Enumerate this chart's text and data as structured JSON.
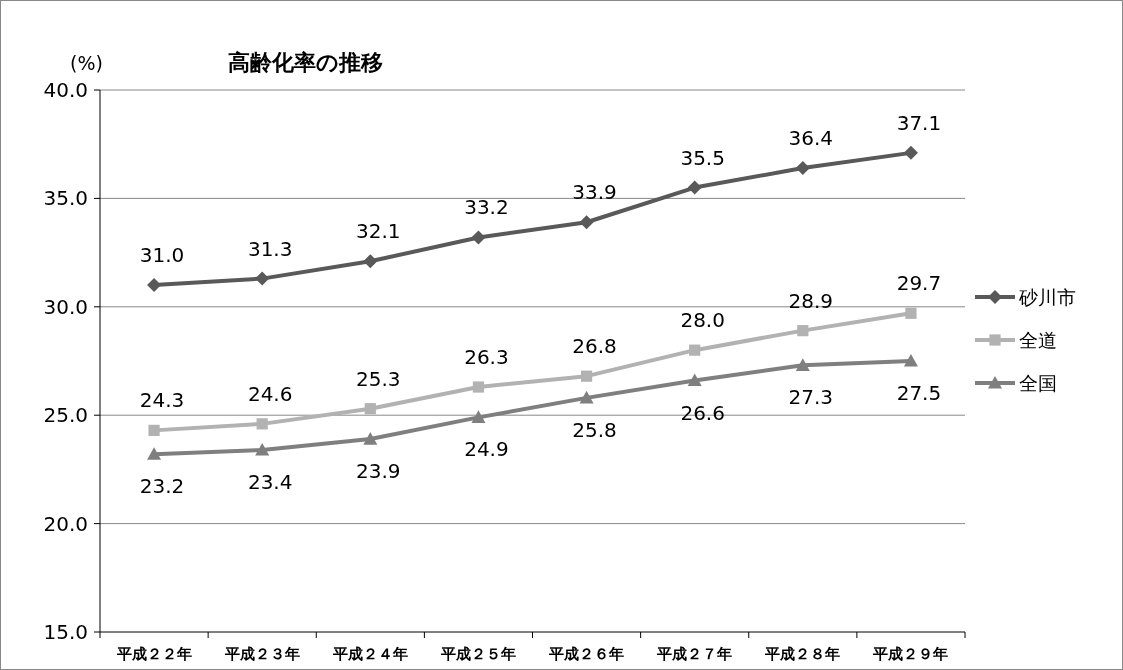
{
  "chart_data": {
    "type": "line",
    "title": "高齢化率の推移",
    "ylabel": "(%)",
    "categories": [
      "平成２２年",
      "平成２３年",
      "平成２４年",
      "平成２５年",
      "平成２６年",
      "平成２７年",
      "平成２８年",
      "平成２９年"
    ],
    "series": [
      {
        "name": "砂川市",
        "color": "#595959",
        "marker": "diamond",
        "values": [
          31.0,
          31.3,
          32.1,
          33.2,
          33.9,
          35.5,
          36.4,
          37.1
        ],
        "value_labels": [
          "31.0",
          "31.3",
          "32.1",
          "33.2",
          "33.9",
          "35.5",
          "36.4",
          "37.1"
        ]
      },
      {
        "name": "全道",
        "color": "#b2b2b2",
        "marker": "square",
        "values": [
          24.3,
          24.6,
          25.3,
          26.3,
          26.8,
          28.0,
          28.9,
          29.7
        ],
        "value_labels": [
          "24.3",
          "24.6",
          "25.3",
          "26.3",
          "26.8",
          "28.0",
          "28.9",
          "29.7"
        ]
      },
      {
        "name": "全国",
        "color": "#7f7f7f",
        "marker": "triangle",
        "values": [
          23.2,
          23.4,
          23.9,
          24.9,
          25.8,
          26.6,
          27.3,
          27.5
        ],
        "value_labels": [
          "23.2",
          "23.4",
          "23.9",
          "24.9",
          "25.8",
          "26.6",
          "27.3",
          "27.5"
        ]
      }
    ],
    "ylim": [
      15,
      40
    ],
    "yticks": [
      {
        "value": 15,
        "label": "15.0"
      },
      {
        "value": 20,
        "label": "20.0"
      },
      {
        "value": 25,
        "label": "25.0"
      },
      {
        "value": 30,
        "label": "30.0"
      },
      {
        "value": 35,
        "label": "35.0"
      },
      {
        "value": 40,
        "label": "40.0"
      }
    ],
    "grid": "y",
    "legend": "right"
  }
}
